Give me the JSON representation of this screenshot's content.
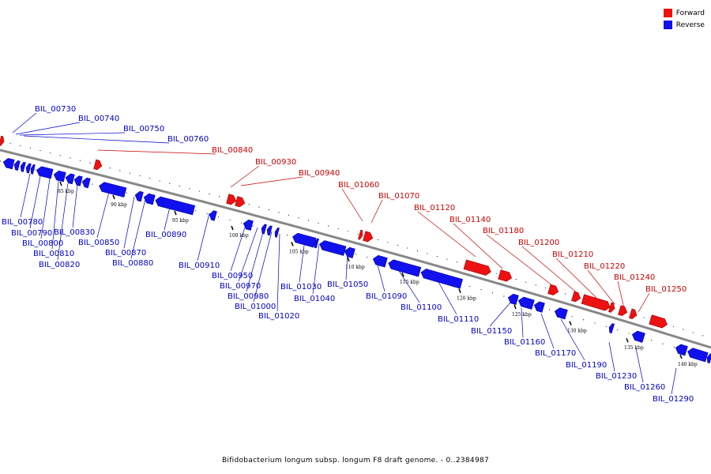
{
  "legend": {
    "forward_label": "Forward",
    "reverse_label": "Reverse",
    "forward_color": "#ee1111",
    "reverse_color": "#1111ee"
  },
  "footer": "Bifidobacterium longum subsp. longum F8 draft genome. - 0..2384987",
  "tick_labels": [
    "85 kbp",
    "90 kbp",
    "95 kbp",
    "100 kbp",
    "105 kbp",
    "110 kbp",
    "115 kbp",
    "120 kbp",
    "125 kbp",
    "130 kbp",
    "135 kbp",
    "140 kbp"
  ],
  "forward_gene_labels": [
    "BIL_00840",
    "BIL_00930",
    "BIL_00940",
    "BIL_01060",
    "BIL_01070",
    "BIL_01120",
    "BIL_01140",
    "BIL_01180",
    "BIL_01200",
    "BIL_01210",
    "BIL_01220",
    "BIL_01240",
    "BIL_01250"
  ],
  "reverse_gene_labels_top": [
    "BIL_00730",
    "BIL_00740",
    "BIL_00750",
    "BIL_00760"
  ],
  "reverse_gene_labels_bottom": [
    "BIL_00780",
    "BIL_00790",
    "BIL_00800",
    "BIL_00810",
    "BIL_00820",
    "BIL_00830",
    "BIL_00850",
    "BIL_00870",
    "BIL_00880",
    "BIL_00890",
    "BIL_00910",
    "BIL_00950",
    "BIL_00970",
    "BIL_00980",
    "BIL_01000",
    "BIL_01020",
    "BIL_01030",
    "BIL_01040",
    "BIL_01050",
    "BIL_01090",
    "BIL_01100",
    "BIL_01110",
    "BIL_01150",
    "BIL_01160",
    "BIL_01170",
    "BIL_01190",
    "BIL_01230",
    "BIL_01260",
    "BIL_01290"
  ]
}
